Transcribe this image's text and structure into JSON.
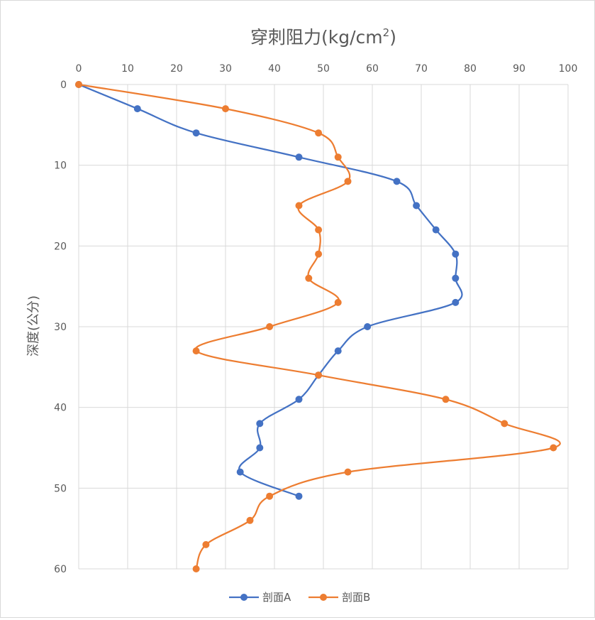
{
  "chart_data": {
    "type": "line",
    "title": "穿刺阻力(kg/cm",
    "title_superscript": "2",
    "title_suffix": ")",
    "xlabel": "",
    "ylabel": "深度(公分)",
    "xlim": [
      0,
      100
    ],
    "ylim": [
      0,
      60
    ],
    "x_ticks": [
      "0",
      "10",
      "20",
      "30",
      "40",
      "50",
      "60",
      "70",
      "80",
      "90",
      "100"
    ],
    "y_ticks": [
      "0",
      "10",
      "20",
      "30",
      "40",
      "50",
      "60"
    ],
    "x_axis_position": "top",
    "y_axis_inverted": true,
    "grid": true,
    "legend_position": "bottom",
    "series": [
      {
        "name": "剖面A",
        "color": "#4472C4",
        "points": [
          {
            "x": 0,
            "y": 0
          },
          {
            "x": 12,
            "y": 3
          },
          {
            "x": 24,
            "y": 6
          },
          {
            "x": 45,
            "y": 9
          },
          {
            "x": 65,
            "y": 12
          },
          {
            "x": 69,
            "y": 15
          },
          {
            "x": 73,
            "y": 18
          },
          {
            "x": 77,
            "y": 21
          },
          {
            "x": 77,
            "y": 24
          },
          {
            "x": 77,
            "y": 27
          },
          {
            "x": 59,
            "y": 30
          },
          {
            "x": 53,
            "y": 33
          },
          {
            "x": 49,
            "y": 36
          },
          {
            "x": 45,
            "y": 39
          },
          {
            "x": 37,
            "y": 42
          },
          {
            "x": 37,
            "y": 45
          },
          {
            "x": 33,
            "y": 48
          },
          {
            "x": 45,
            "y": 51
          }
        ]
      },
      {
        "name": "剖面B",
        "color": "#ED7D31",
        "points": [
          {
            "x": 0,
            "y": 0
          },
          {
            "x": 30,
            "y": 3
          },
          {
            "x": 49,
            "y": 6
          },
          {
            "x": 53,
            "y": 9
          },
          {
            "x": 55,
            "y": 12
          },
          {
            "x": 45,
            "y": 15
          },
          {
            "x": 49,
            "y": 18
          },
          {
            "x": 49,
            "y": 21
          },
          {
            "x": 47,
            "y": 24
          },
          {
            "x": 53,
            "y": 27
          },
          {
            "x": 39,
            "y": 30
          },
          {
            "x": 24,
            "y": 33
          },
          {
            "x": 49,
            "y": 36
          },
          {
            "x": 75,
            "y": 39
          },
          {
            "x": 87,
            "y": 42
          },
          {
            "x": 97,
            "y": 45
          },
          {
            "x": 55,
            "y": 48
          },
          {
            "x": 39,
            "y": 51
          },
          {
            "x": 35,
            "y": 54
          },
          {
            "x": 26,
            "y": 57
          },
          {
            "x": 24,
            "y": 60
          }
        ]
      }
    ]
  }
}
